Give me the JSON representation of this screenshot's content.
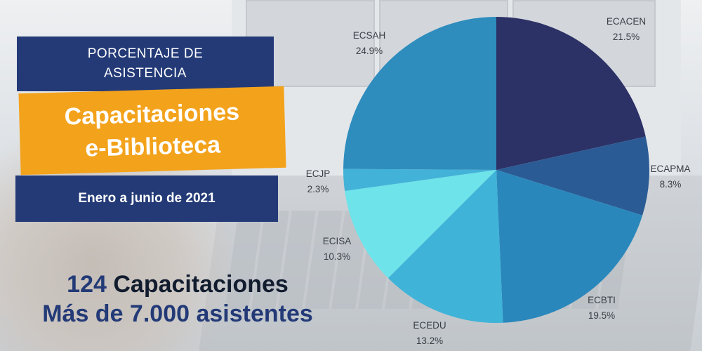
{
  "panel": {
    "subtitle_line1": "PORCENTAJE DE",
    "subtitle_line2": "ASISTENCIA",
    "title_line1": "Capacitaciones",
    "title_line2": "e-Biblioteca",
    "date_range": "Enero a junio de 2021"
  },
  "stats": {
    "count": "124",
    "count_label": "Capacitaciones",
    "attendees": "Más de 7.000 asistentes"
  },
  "colors": {
    "navy": "#233a77",
    "orange": "#f3a21b"
  },
  "chart_data": {
    "type": "pie",
    "slices": [
      {
        "name": "ECACEN",
        "value": 21.5,
        "label": "21.5%",
        "color": "#2c3166"
      },
      {
        "name": "ECAPMA",
        "value": 8.3,
        "label": "8.3%",
        "color": "#2b5b95"
      },
      {
        "name": "ECBTI",
        "value": 19.5,
        "label": "19.5%",
        "color": "#2a87bb"
      },
      {
        "name": "ECEDU",
        "value": 13.2,
        "label": "13.2%",
        "color": "#3fb3d8"
      },
      {
        "name": "ECISA",
        "value": 10.3,
        "label": "10.3%",
        "color": "#6ee3ea"
      },
      {
        "name": "ECJP",
        "value": 2.3,
        "label": "2.3%",
        "color": "#42b2d8"
      },
      {
        "name": "ECSAH",
        "value": 24.9,
        "label": "24.9%",
        "color": "#2e8dbd"
      }
    ]
  }
}
